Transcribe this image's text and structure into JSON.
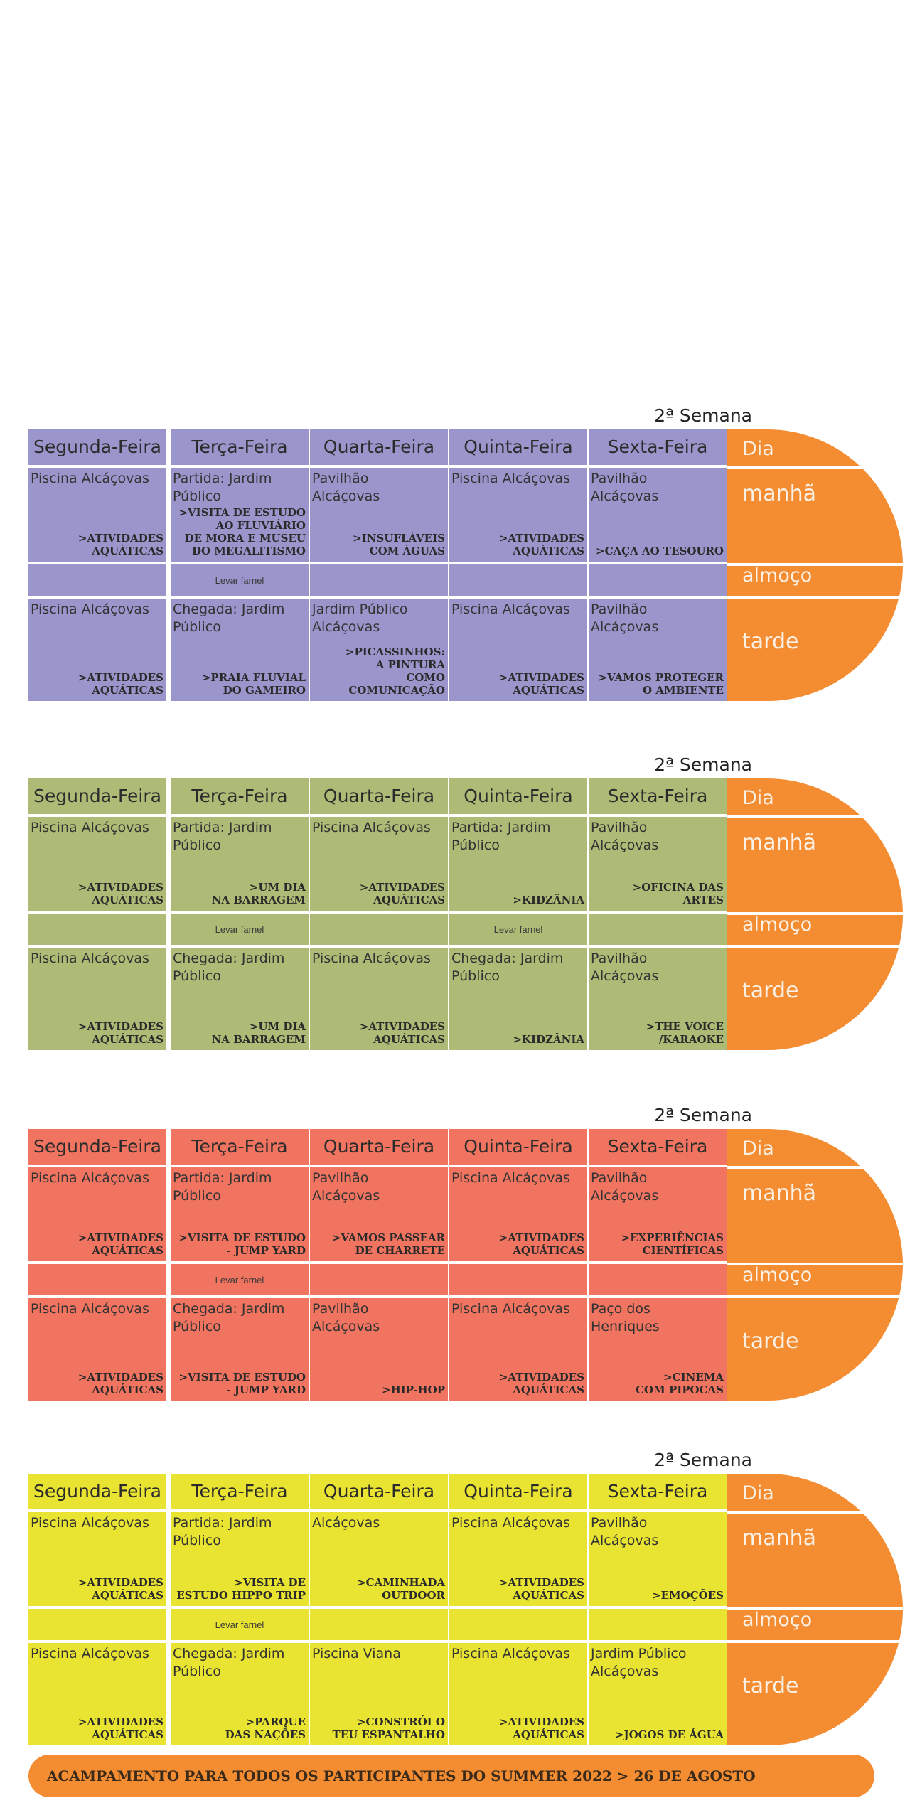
{
  "labels": {
    "days": [
      "Segunda-Feira",
      "Terça-Feira",
      "Quarta-Feira",
      "Quinta-Feira",
      "Sexta-Feira"
    ],
    "periods": [
      "Dia",
      "manhã",
      "almoço",
      "tarde"
    ]
  },
  "weeks": [
    {
      "title": "2ª Semana",
      "color": "#9a95cb",
      "morning": [
        {
          "loc": "Piscina Alcáçovas",
          "act": ">ATIVIDADES\nAQUÁTICAS"
        },
        {
          "loc": "Partida: Jardim\nPúblico",
          "act": ">VISITA DE ESTUDO\nAO FLUVIÁRIO\nDE MORA E MUSEU\nDO MEGALITISMO"
        },
        {
          "loc": "Pavilhão\nAlcáçovas",
          "act": ">INSUFLÁVEIS\nCOM ÁGUAS"
        },
        {
          "loc": "Piscina Alcáçovas",
          "act": ">ATIVIDADES\nAQUÁTICAS"
        },
        {
          "loc": "Pavilhão\nAlcáçovas",
          "act": ">CAÇA AO TESOURO"
        }
      ],
      "lunch": [
        "",
        "Levar farnel",
        "",
        "",
        ""
      ],
      "afternoon": [
        {
          "loc": "Piscina Alcáçovas",
          "act": ">ATIVIDADES\nAQUÁTICAS"
        },
        {
          "loc": "Chegada: Jardim\nPúblico",
          "act": ">PRAIA FLUVIAL\nDO GAMEIRO"
        },
        {
          "loc": "Jardim Público\nAlcáçovas",
          "act": ">PICASSINHOS:\nA PINTURA\nCOMO COMUNICAÇÃO"
        },
        {
          "loc": "Piscina Alcáçovas",
          "act": ">ATIVIDADES\nAQUÁTICAS"
        },
        {
          "loc": "Pavilhão\nAlcáçovas",
          "act": ">VAMOS PROTEGER\nO AMBIENTE"
        }
      ]
    },
    {
      "title": "2ª Semana",
      "color": "#adbb77",
      "morning": [
        {
          "loc": "Piscina Alcáçovas",
          "act": ">ATIVIDADES\nAQUÁTICAS"
        },
        {
          "loc": "Partida: Jardim\nPúblico",
          "act": ">UM DIA\nNA BARRAGEM"
        },
        {
          "loc": "Piscina Alcáçovas",
          "act": ">ATIVIDADES\nAQUÁTICAS"
        },
        {
          "loc": "Partida: Jardim\nPúblico",
          "act": ">KIDZÂNIA"
        },
        {
          "loc": "Pavilhão\nAlcáçovas",
          "act": ">OFICINA DAS ARTES"
        }
      ],
      "lunch": [
        "",
        "Levar farnel",
        "",
        "Levar farnel",
        ""
      ],
      "afternoon": [
        {
          "loc": "Piscina Alcáçovas",
          "act": ">ATIVIDADES\nAQUÁTICAS"
        },
        {
          "loc": "Chegada: Jardim\nPúblico",
          "act": ">UM DIA\nNA BARRAGEM"
        },
        {
          "loc": "Piscina Alcáçovas",
          "act": ">ATIVIDADES\nAQUÁTICAS"
        },
        {
          "loc": "Chegada: Jardim\nPúblico",
          "act": ">KIDZÂNIA"
        },
        {
          "loc": "Pavilhão\nAlcáçovas",
          "act": ">THE VOICE\n/KARAOKE"
        }
      ]
    },
    {
      "title": "2ª Semana",
      "color": "#f07460",
      "morning": [
        {
          "loc": "Piscina Alcáçovas",
          "act": ">ATIVIDADES\nAQUÁTICAS"
        },
        {
          "loc": "Partida: Jardim\nPúblico",
          "act": ">VISITA DE ESTUDO\n- JUMP YARD"
        },
        {
          "loc": "Pavilhão\nAlcáçovas",
          "act": ">VAMOS PASSEAR\nDE CHARRETE"
        },
        {
          "loc": "Piscina Alcáçovas",
          "act": ">ATIVIDADES\nAQUÁTICAS"
        },
        {
          "loc": "Pavilhão\nAlcáçovas",
          "act": ">EXPERIÊNCIAS\nCIENTÍFICAS"
        }
      ],
      "lunch": [
        "",
        "Levar farnel",
        "",
        "",
        ""
      ],
      "afternoon": [
        {
          "loc": "Piscina Alcáçovas",
          "act": ">ATIVIDADES\nAQUÁTICAS"
        },
        {
          "loc": "Chegada: Jardim\nPúblico",
          "act": ">VISITA DE ESTUDO\n- JUMP YARD"
        },
        {
          "loc": "Pavilhão\nAlcáçovas",
          "act": ">HIP-HOP"
        },
        {
          "loc": "Piscina Alcáçovas",
          "act": ">ATIVIDADES\nAQUÁTICAS"
        },
        {
          "loc": "Paço dos\nHenriques",
          "act": ">CINEMA\nCOM PIPOCAS"
        }
      ]
    },
    {
      "title": "2ª Semana",
      "color": "#e9e431",
      "morning": [
        {
          "loc": "Piscina Alcáçovas",
          "act": ">ATIVIDADES\nAQUÁTICAS"
        },
        {
          "loc": "Partida: Jardim\nPúblico",
          "act": ">VISITA DE\nESTUDO HIPPO TRIP"
        },
        {
          "loc": "Alcáçovas",
          "act": ">CAMINHADA\nOUTDOOR"
        },
        {
          "loc": "Piscina Alcáçovas",
          "act": ">ATIVIDADES\nAQUÁTICAS"
        },
        {
          "loc": "Pavilhão\nAlcáçovas",
          "act": ">EMOÇÕES"
        }
      ],
      "lunch": [
        "",
        "Levar farnel",
        "",
        "",
        ""
      ],
      "afternoon": [
        {
          "loc": "Piscina Alcáçovas",
          "act": ">ATIVIDADES\nAQUÁTICAS"
        },
        {
          "loc": "Chegada: Jardim\nPúblico",
          "act": ">PARQUE\nDAS NAÇÕES"
        },
        {
          "loc": "Piscina Viana",
          "act": ">CONSTRÓI O\nTEU ESPANTALHO"
        },
        {
          "loc": "Piscina Alcáçovas",
          "act": ">ATIVIDADES\nAQUÁTICAS"
        },
        {
          "loc": "Jardim Público\nAlcáçovas",
          "act": ">JOGOS DE ÁGUA"
        }
      ]
    }
  ],
  "footer": "ACAMPAMENTO PARA TODOS OS PARTICIPANTES DO SUMMER 2022 > 26 DE AGOSTO"
}
